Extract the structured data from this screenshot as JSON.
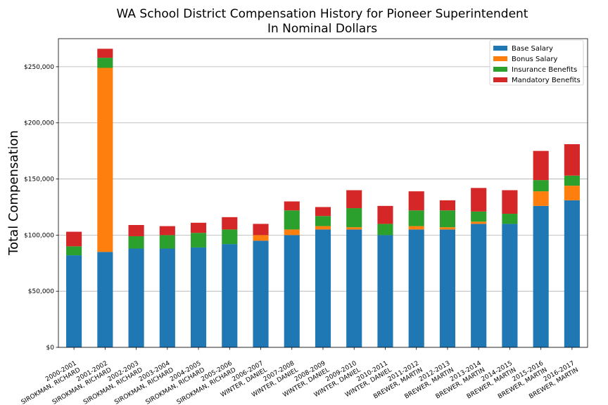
{
  "chart_data": {
    "type": "bar",
    "stacked": true,
    "title": "WA School District Compensation History for Pioneer Superintendent",
    "subtitle": "In Nominal Dollars",
    "xlabel": "",
    "ylabel": "Total Compensation",
    "ylim": [
      0,
      275000
    ],
    "yticks": [
      0,
      50000,
      100000,
      150000,
      200000,
      250000
    ],
    "ytick_labels": [
      "$0",
      "$50,000",
      "$100,000",
      "$150,000",
      "$200,000",
      "$250,000"
    ],
    "grid": true,
    "legend_position": "top-right",
    "categories": [
      [
        "2000-2001",
        "SIROKMAN, RICHARD"
      ],
      [
        "2001-2002",
        "SIROKMAN, RICHARD"
      ],
      [
        "2002-2003",
        "SIROKMAN, RICHARD"
      ],
      [
        "2003-2004",
        "SIROKMAN, RICHARD"
      ],
      [
        "2004-2005",
        "SIROKMAN, RICHARD"
      ],
      [
        "2005-2006",
        "SIROKMAN, RICHARD"
      ],
      [
        "2006-2007",
        "WINTER, DANIEL"
      ],
      [
        "2007-2008",
        "WINTER, DANIEL"
      ],
      [
        "2008-2009",
        "WINTER, DANIEL"
      ],
      [
        "2009-2010",
        "WINTER, DANIEL"
      ],
      [
        "2010-2011",
        "WINTER, DANIEL"
      ],
      [
        "2011-2012",
        "BREWER, MARTIN"
      ],
      [
        "2012-2013",
        "BREWER, MARTIN"
      ],
      [
        "2013-2014",
        "BREWER, MARTIN"
      ],
      [
        "2014-2015",
        "BREWER, MARTIN"
      ],
      [
        "2015-2016",
        "BREWER, MARTIN"
      ],
      [
        "2016-2017",
        "BREWER, MARTIN"
      ]
    ],
    "series": [
      {
        "name": "Base Salary",
        "color": "#1f77b4",
        "values": [
          82000,
          85000,
          88000,
          88000,
          89000,
          92000,
          95000,
          100000,
          105000,
          105000,
          100000,
          105000,
          105000,
          110000,
          110000,
          126000,
          131000
        ]
      },
      {
        "name": "Bonus Salary",
        "color": "#ff7f0e",
        "values": [
          0,
          164000,
          0,
          0,
          0,
          0,
          5000,
          5000,
          3000,
          2000,
          0,
          3000,
          2000,
          2000,
          0,
          13000,
          13000
        ]
      },
      {
        "name": "Insurance Benefits",
        "color": "#2ca02c",
        "values": [
          8000,
          9000,
          11000,
          12000,
          13000,
          13000,
          0,
          17000,
          9000,
          17000,
          10000,
          14000,
          15000,
          9000,
          9000,
          10000,
          9000
        ]
      },
      {
        "name": "Mandatory Benefits",
        "color": "#d62728",
        "values": [
          13000,
          8000,
          10000,
          8000,
          9000,
          11000,
          10000,
          8000,
          8000,
          16000,
          16000,
          17000,
          9000,
          21000,
          21000,
          26000,
          28000
        ]
      }
    ]
  }
}
